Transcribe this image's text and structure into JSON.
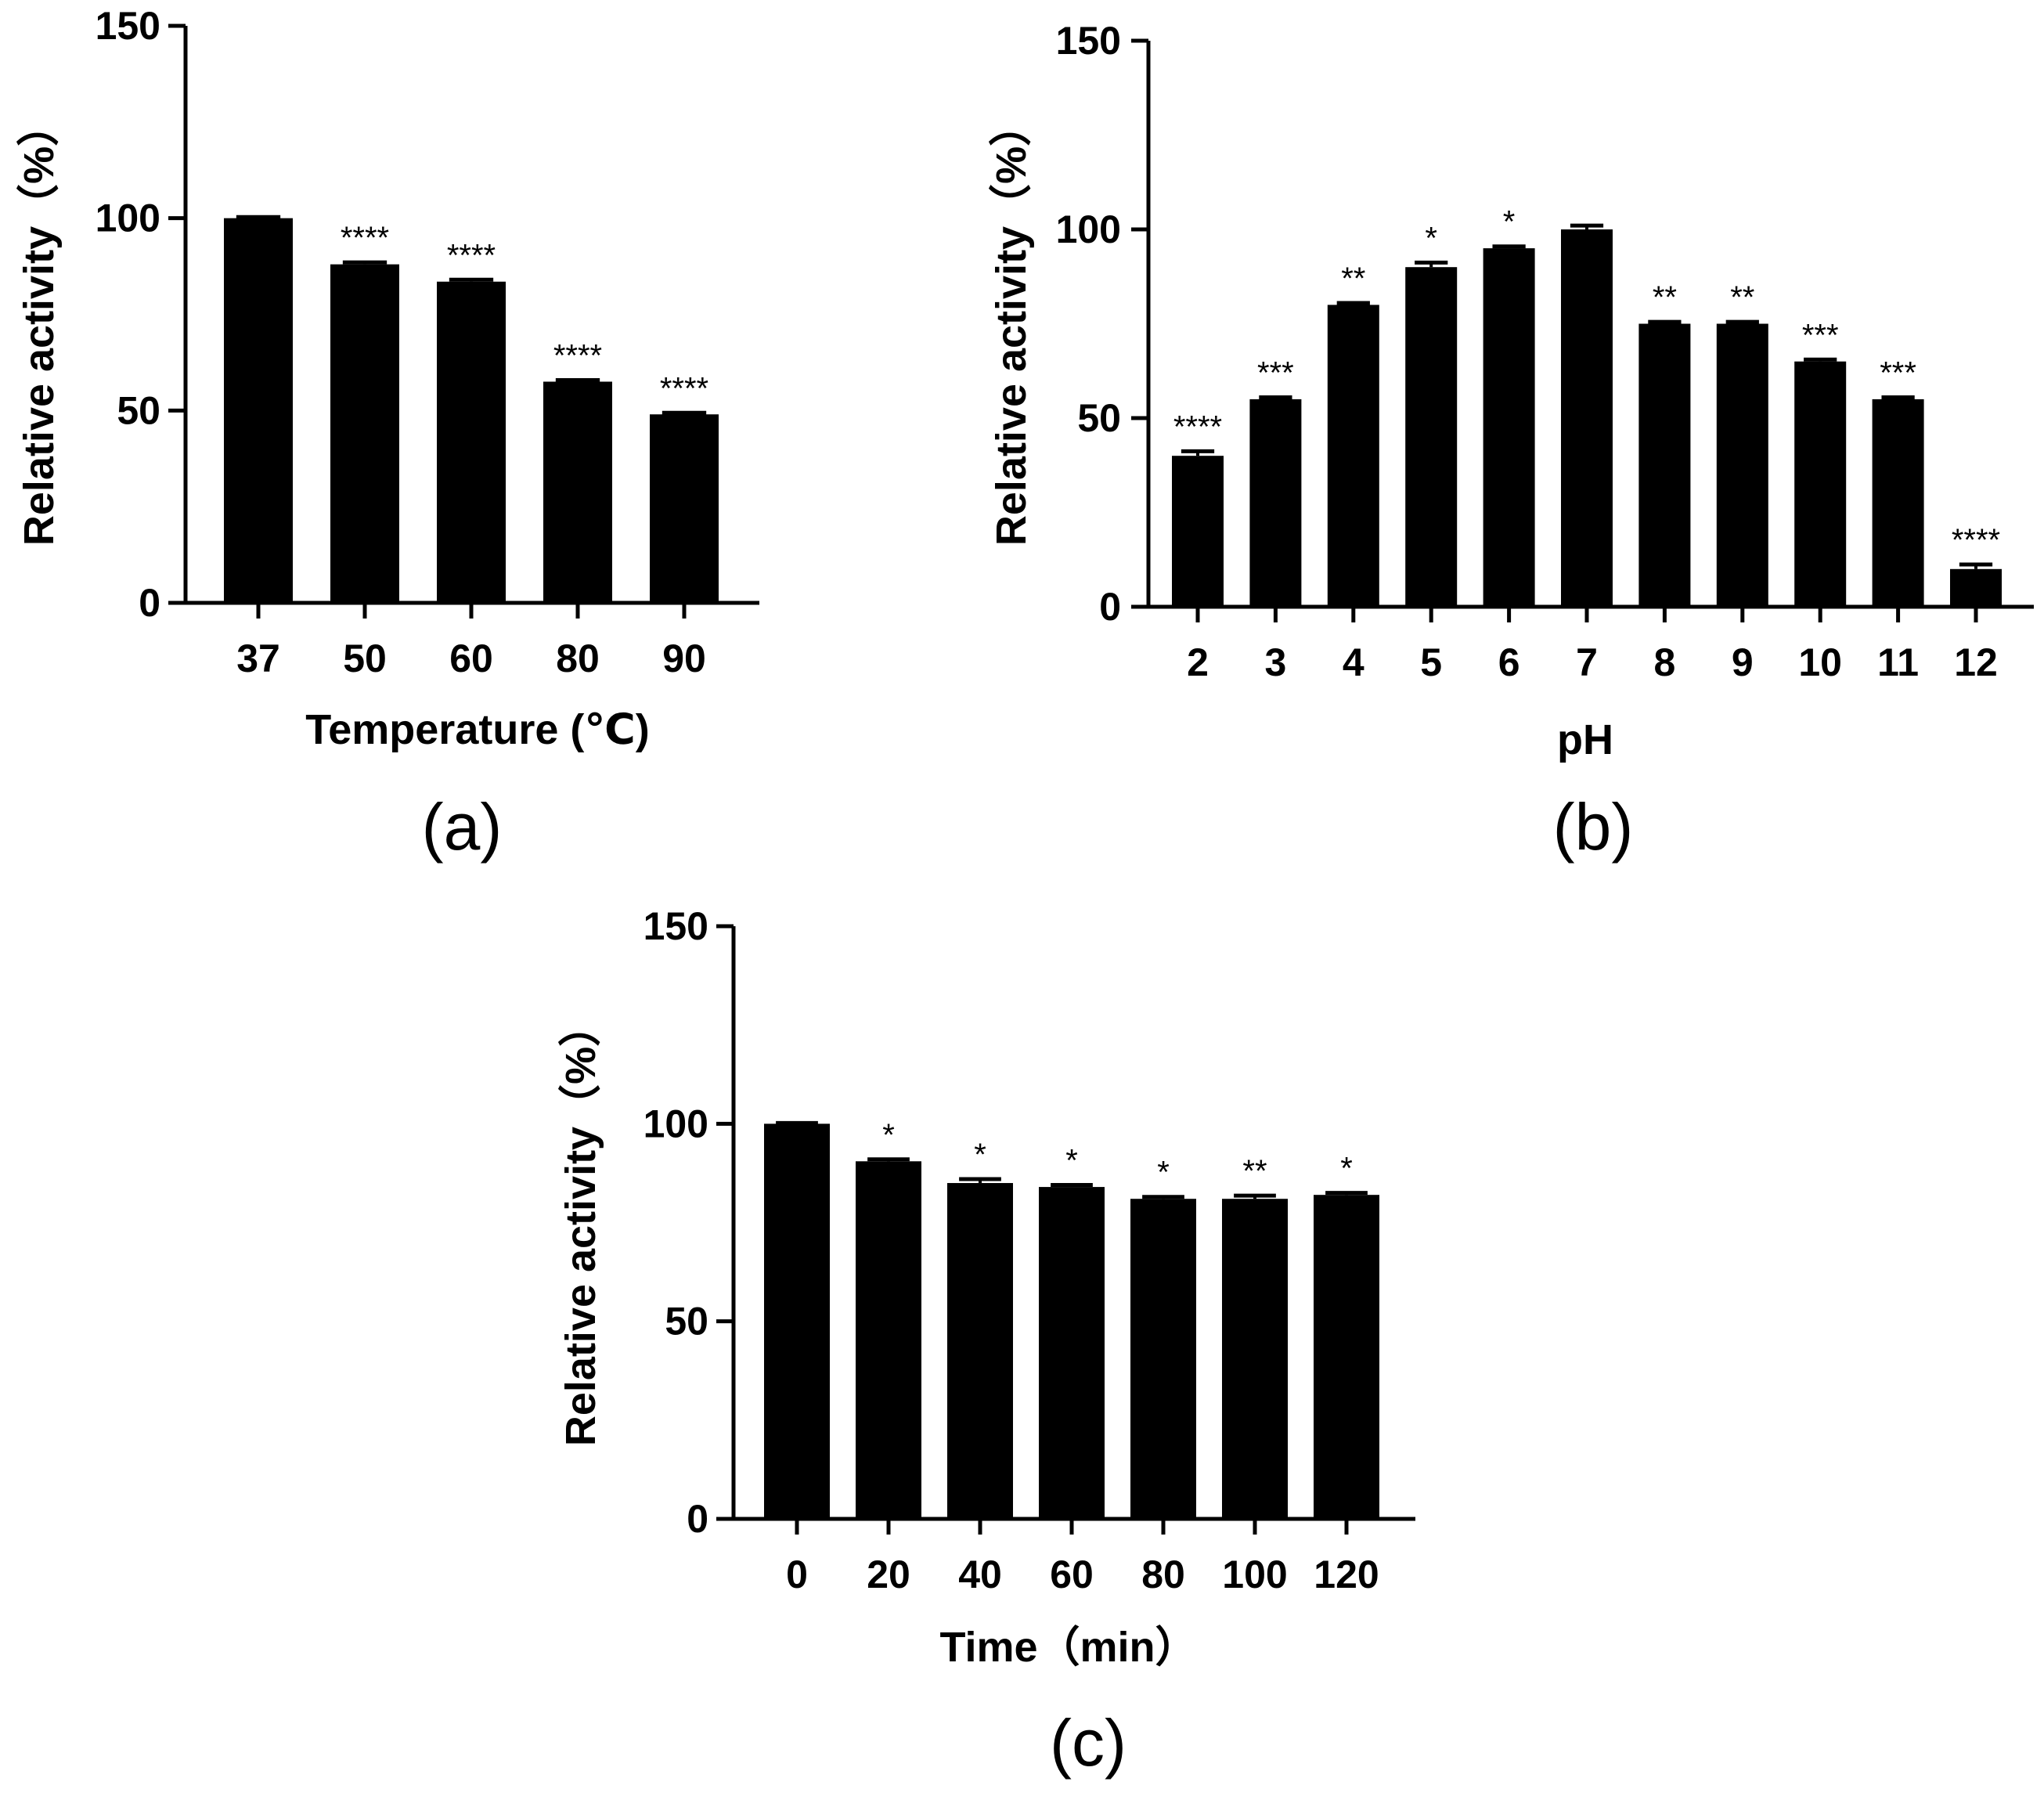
{
  "chart_data": [
    {
      "type": "bar",
      "panel_label": "(a)",
      "title": "",
      "xlabel": "Temperature (℃)",
      "ylabel": "Relative  activity（%）",
      "ylim": [
        0,
        150
      ],
      "yticks": [
        0,
        50,
        100,
        150
      ],
      "categories": [
        "37",
        "50",
        "60",
        "80",
        "90"
      ],
      "values": [
        100,
        88,
        83.5,
        57.5,
        49
      ],
      "errors": [
        0.3,
        0.5,
        0.5,
        0.4,
        0.4
      ],
      "significance": [
        "",
        "****",
        "****",
        "****",
        "****"
      ],
      "bar_color": "#000000"
    },
    {
      "type": "bar",
      "panel_label": "(b)",
      "title": "",
      "xlabel": "pH",
      "ylabel": "Relative  activity（%）",
      "ylim": [
        0,
        150
      ],
      "yticks": [
        0,
        50,
        100,
        150
      ],
      "categories": [
        "2",
        "3",
        "4",
        "5",
        "6",
        "7",
        "8",
        "9",
        "10",
        "11",
        "12"
      ],
      "values": [
        40,
        55,
        80,
        90,
        95,
        100,
        75,
        75,
        65,
        55,
        10
      ],
      "errors": [
        1.2,
        0.5,
        0.5,
        1.2,
        0.5,
        1.0,
        0.5,
        0.5,
        0.5,
        0.5,
        1.2
      ],
      "significance": [
        "****",
        "***",
        "**",
        "*",
        "*",
        "",
        "**",
        "**",
        "***",
        "***",
        "****"
      ],
      "bar_color": "#000000"
    },
    {
      "type": "bar",
      "panel_label": "(c)",
      "title": "",
      "xlabel": "Time（min）",
      "ylabel": "Relative  activity（%）",
      "ylim": [
        0,
        150
      ],
      "yticks": [
        0,
        50,
        100,
        150
      ],
      "categories": [
        "0",
        "20",
        "40",
        "60",
        "80",
        "100",
        "120"
      ],
      "values": [
        100,
        90.5,
        85,
        84,
        81,
        81,
        82
      ],
      "errors": [
        0.2,
        0.5,
        1.0,
        0.5,
        0.5,
        0.8,
        0.5
      ],
      "significance": [
        "",
        "*",
        "*",
        "*",
        "*",
        "**",
        "*"
      ],
      "bar_color": "#000000"
    }
  ]
}
